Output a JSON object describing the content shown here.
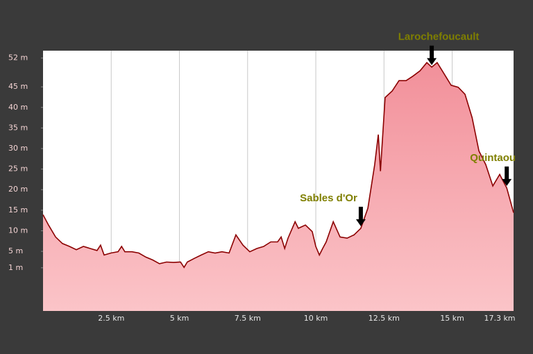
{
  "chart_data": {
    "type": "area",
    "x": [
      0,
      0.2,
      0.46,
      0.71,
      0.97,
      1.22,
      1.48,
      1.73,
      1.98,
      2.11,
      2.24,
      2.49,
      2.75,
      2.88,
      3.0,
      3.26,
      3.51,
      3.77,
      4.02,
      4.27,
      4.53,
      4.78,
      5.04,
      5.17,
      5.29,
      5.55,
      5.8,
      6.06,
      6.31,
      6.56,
      6.82,
      7.07,
      7.33,
      7.58,
      7.84,
      8.09,
      8.35,
      8.6,
      8.73,
      8.86,
      8.98,
      9.24,
      9.36,
      9.62,
      9.87,
      10.0,
      10.13,
      10.25,
      10.38,
      10.64,
      10.89,
      11.15,
      11.4,
      11.65,
      11.91,
      12.16,
      12.29,
      12.37,
      12.54,
      12.8,
      13.05,
      13.31,
      13.56,
      13.82,
      14.07,
      14.25,
      14.45,
      14.71,
      14.96,
      15.22,
      15.47,
      15.73,
      15.98,
      16.23,
      16.49,
      16.74,
      17.0,
      17.25
    ],
    "values": [
      13.9,
      11.4,
      8.5,
      6.9,
      6.2,
      5.4,
      6.2,
      5.7,
      5.2,
      6.5,
      4.1,
      4.6,
      4.9,
      6.2,
      4.9,
      4.9,
      4.6,
      3.6,
      2.9,
      2.0,
      2.4,
      2.3,
      2.4,
      1.1,
      2.4,
      3.3,
      4.1,
      4.9,
      4.6,
      4.9,
      4.6,
      9.0,
      6.5,
      4.9,
      5.7,
      6.2,
      7.3,
      7.3,
      8.5,
      5.7,
      8.2,
      12.2,
      10.6,
      11.4,
      9.8,
      6.2,
      4.1,
      5.7,
      7.3,
      12.2,
      8.5,
      8.2,
      9.0,
      10.6,
      15.5,
      26.1,
      33.4,
      24.5,
      42.4,
      44.0,
      46.5,
      46.5,
      47.6,
      48.9,
      50.9,
      49.8,
      50.9,
      48.1,
      45.4,
      44.9,
      43.2,
      37.5,
      29.4,
      26.1,
      20.9,
      23.7,
      20.4,
      14.4
    ],
    "color": "#8b0000",
    "xlim": [
      0,
      17.25
    ],
    "ylim": [
      -9.5,
      53.8
    ],
    "xticks": [
      {
        "value": 2.5,
        "label": "2.5 km"
      },
      {
        "value": 5,
        "label": "5 km"
      },
      {
        "value": 7.5,
        "label": "7.5 km"
      },
      {
        "value": 10,
        "label": "10 km"
      },
      {
        "value": 12.5,
        "label": "12.5 km"
      },
      {
        "value": 15,
        "label": "15 km"
      },
      {
        "value": 17.3,
        "label": "17.3 km"
      }
    ],
    "yticks": [
      {
        "value": 52,
        "label": "52 m"
      },
      {
        "value": 45,
        "label": "45 m"
      },
      {
        "value": 40,
        "label": "40 m"
      },
      {
        "value": 35,
        "label": "35 m"
      },
      {
        "value": 30,
        "label": "30 m"
      },
      {
        "value": 25,
        "label": "25 m"
      },
      {
        "value": 20,
        "label": "20 m"
      },
      {
        "value": 15,
        "label": "15 m"
      },
      {
        "value": 10,
        "label": "10 m"
      },
      {
        "value": 5,
        "label": "5 m"
      },
      {
        "value": 1,
        "label": "1 m"
      }
    ],
    "annotations": [
      {
        "text": "Sables d'Or",
        "x": 11.65
      },
      {
        "text": "Larochefoucault",
        "x": 14.25
      },
      {
        "text": "Quintaou",
        "x": 17.0
      }
    ]
  }
}
